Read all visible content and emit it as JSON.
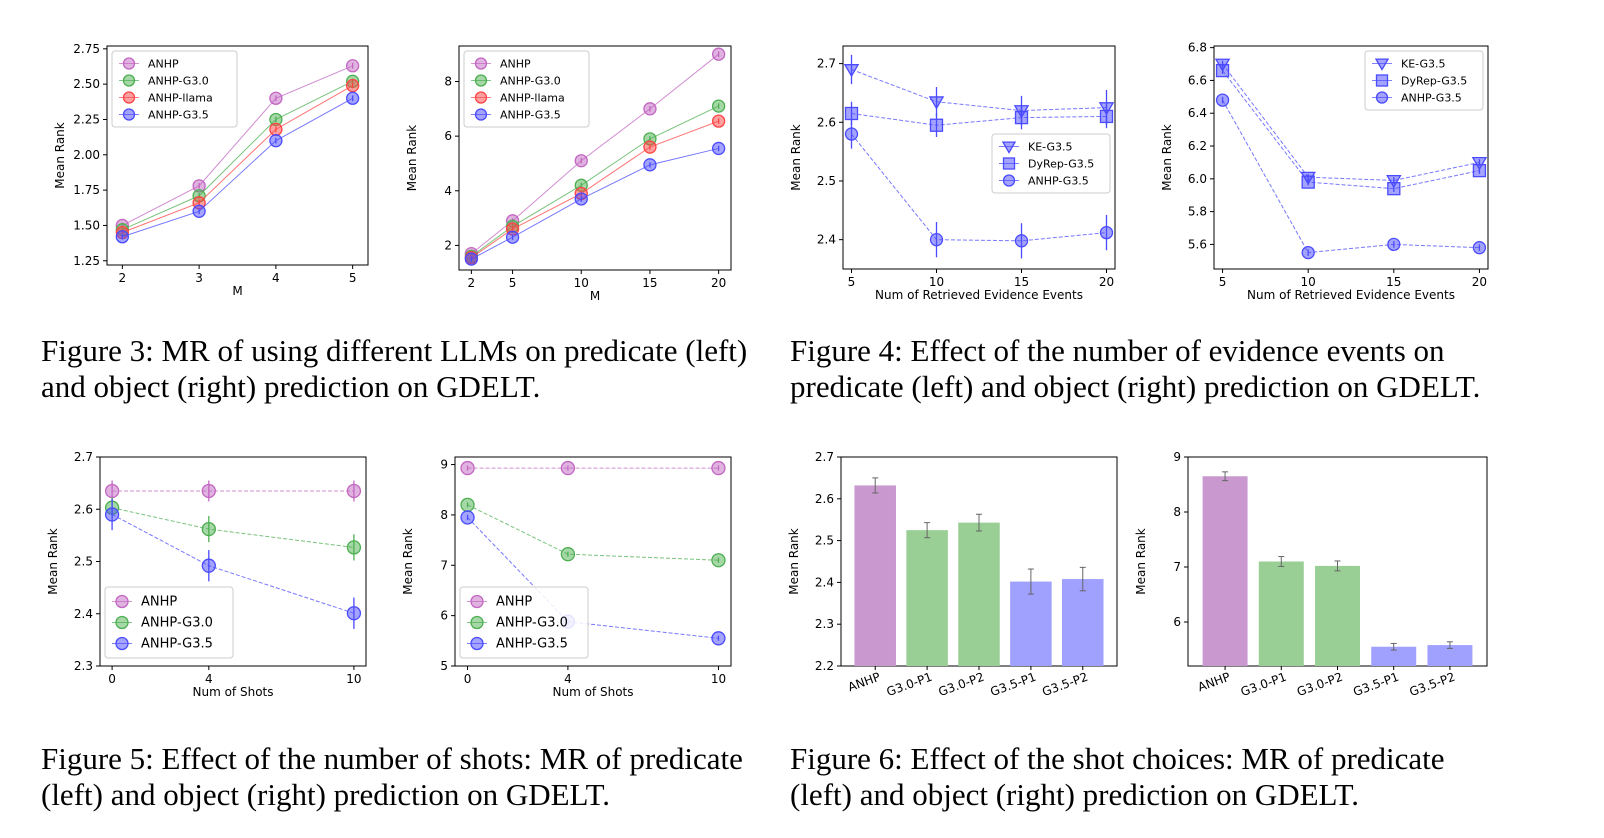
{
  "captions": {
    "fig3": "Figure 3: MR of using different LLMs on predicate (left) and object (right) prediction on GDELT.",
    "fig4": "Figure 4: Effect of the number of evidence events on predicate (left) and object (right) prediction on GDELT.",
    "fig5": "Figure 5: Effect of the number of shots: MR of predicate (left) and object (right) prediction on GDELT.",
    "fig6": "Figure 6: Effect of the shot choices: MR of predicate (left) and object (right) prediction on GDELT."
  },
  "chart_data": [
    {
      "id": "fig3-left",
      "type": "line",
      "title": "",
      "xlabel": "M",
      "ylabel": "Mean Rank",
      "x": [
        2,
        3,
        4,
        5
      ],
      "xticks": [
        "2",
        "3",
        "4",
        "5"
      ],
      "xlim": [
        1.8,
        5.2
      ],
      "ylim": [
        1.22,
        2.77
      ],
      "yticks": [
        "1.25",
        "1.50",
        "1.75",
        "2.00",
        "2.25",
        "2.50",
        "2.75"
      ],
      "grid": false,
      "legend": "upper-left",
      "series": [
        {
          "name": "ANHP",
          "color": "#c266c2",
          "marker": "circle",
          "values": [
            1.5,
            1.78,
            2.4,
            2.63
          ],
          "err": [
            0.02,
            0.02,
            0.02,
            0.02
          ]
        },
        {
          "name": "ANHP-G3.0",
          "color": "#4caf50",
          "marker": "circle",
          "values": [
            1.47,
            1.71,
            2.25,
            2.52
          ],
          "err": [
            0.02,
            0.02,
            0.02,
            0.02
          ]
        },
        {
          "name": "ANHP-llama",
          "color": "#ff4444",
          "marker": "circle",
          "values": [
            1.45,
            1.66,
            2.18,
            2.49
          ],
          "err": [
            0.02,
            0.02,
            0.02,
            0.02
          ]
        },
        {
          "name": "ANHP-G3.5",
          "color": "#4a4aff",
          "marker": "circle",
          "values": [
            1.42,
            1.6,
            2.1,
            2.4
          ],
          "err": [
            0.02,
            0.02,
            0.02,
            0.02
          ]
        }
      ]
    },
    {
      "id": "fig3-right",
      "type": "line",
      "title": "",
      "xlabel": "M",
      "ylabel": "Mean Rank",
      "x": [
        2,
        5,
        10,
        15,
        20
      ],
      "xticks": [
        "2",
        "5",
        "10",
        "15",
        "20"
      ],
      "xlim": [
        1.1,
        20.9
      ],
      "ylim": [
        1.1,
        9.3
      ],
      "yticks": [
        "2",
        "4",
        "6",
        "8"
      ],
      "grid": false,
      "legend": "upper-left",
      "series": [
        {
          "name": "ANHP",
          "color": "#c266c2",
          "marker": "circle",
          "values": [
            1.7,
            2.9,
            5.1,
            7.0,
            9.0
          ],
          "err": [
            0.1,
            0.1,
            0.1,
            0.1,
            0.1
          ]
        },
        {
          "name": "ANHP-G3.0",
          "color": "#4caf50",
          "marker": "circle",
          "values": [
            1.6,
            2.7,
            4.2,
            5.9,
            7.1
          ],
          "err": [
            0.1,
            0.1,
            0.1,
            0.1,
            0.1
          ]
        },
        {
          "name": "ANHP-llama",
          "color": "#ff4444",
          "marker": "circle",
          "values": [
            1.55,
            2.6,
            3.9,
            5.6,
            6.55
          ],
          "err": [
            0.1,
            0.1,
            0.1,
            0.1,
            0.1
          ]
        },
        {
          "name": "ANHP-G3.5",
          "color": "#4a4aff",
          "marker": "circle",
          "values": [
            1.5,
            2.3,
            3.7,
            4.95,
            5.55
          ],
          "err": [
            0.1,
            0.1,
            0.1,
            0.1,
            0.1
          ]
        }
      ]
    },
    {
      "id": "fig4-left",
      "type": "line",
      "title": "",
      "xlabel": "Num of Retrieved Evidence Events",
      "ylabel": "Mean Rank",
      "x": [
        5,
        10,
        15,
        20
      ],
      "xticks": [
        "5",
        "10",
        "15",
        "20"
      ],
      "xlim": [
        4.5,
        20.5
      ],
      "ylim": [
        2.35,
        2.73
      ],
      "yticks": [
        "2.4",
        "2.5",
        "2.6",
        "2.7"
      ],
      "grid": false,
      "legend": "center-right",
      "series": [
        {
          "name": "KE-G3.5",
          "color": "#4a4aff",
          "marker": "triangle-down",
          "values": [
            2.69,
            2.635,
            2.62,
            2.625
          ],
          "err": [
            0.025,
            0.025,
            0.025,
            0.03
          ]
        },
        {
          "name": "DyRep-G3.5",
          "color": "#4a4aff",
          "marker": "square",
          "values": [
            2.615,
            2.595,
            2.608,
            2.61
          ],
          "err": [
            0.02,
            0.02,
            0.02,
            0.02
          ]
        },
        {
          "name": "ANHP-G3.5",
          "color": "#4a4aff",
          "marker": "circle",
          "values": [
            2.58,
            2.4,
            2.398,
            2.412
          ],
          "err": [
            0.025,
            0.03,
            0.03,
            0.03
          ]
        }
      ]
    },
    {
      "id": "fig4-right",
      "type": "line",
      "title": "",
      "xlabel": "Num of Retrieved Evidence Events",
      "ylabel": "Mean Rank",
      "x": [
        5,
        10,
        15,
        20
      ],
      "xticks": [
        "5",
        "10",
        "15",
        "20"
      ],
      "xlim": [
        4.5,
        20.5
      ],
      "ylim": [
        5.45,
        6.81
      ],
      "yticks": [
        "5.6",
        "5.8",
        "6.0",
        "6.2",
        "6.4",
        "6.6",
        "6.8"
      ],
      "grid": false,
      "legend": "upper-right",
      "series": [
        {
          "name": "KE-G3.5",
          "color": "#4a4aff",
          "marker": "triangle-down",
          "values": [
            6.7,
            6.01,
            5.99,
            6.1
          ],
          "err": [
            0.02,
            0.02,
            0.02,
            0.02
          ]
        },
        {
          "name": "DyRep-G3.5",
          "color": "#4a4aff",
          "marker": "square",
          "values": [
            6.66,
            5.98,
            5.94,
            6.05
          ],
          "err": [
            0.02,
            0.02,
            0.02,
            0.02
          ]
        },
        {
          "name": "ANHP-G3.5",
          "color": "#4a4aff",
          "marker": "circle",
          "values": [
            6.48,
            5.55,
            5.6,
            5.58
          ],
          "err": [
            0.02,
            0.02,
            0.02,
            0.02
          ]
        }
      ]
    },
    {
      "id": "fig5-left",
      "type": "line",
      "title": "",
      "xlabel": "Num of Shots",
      "ylabel": "Mean Rank",
      "x": [
        0,
        4,
        10
      ],
      "xticks": [
        "0",
        "4",
        "10"
      ],
      "xlim": [
        -0.5,
        10.5
      ],
      "ylim": [
        2.3,
        2.7
      ],
      "yticks": [
        "2.3",
        "2.4",
        "2.5",
        "2.6",
        "2.7"
      ],
      "grid": false,
      "legend": "lower-left",
      "series": [
        {
          "name": "ANHP",
          "color": "#c266c2",
          "marker": "circle",
          "values": [
            2.635,
            2.635,
            2.635
          ],
          "err": [
            0.02,
            0.02,
            0.02
          ]
        },
        {
          "name": "ANHP-G3.0",
          "color": "#4caf50",
          "marker": "circle",
          "values": [
            2.603,
            2.562,
            2.527
          ],
          "err": [
            0.02,
            0.025,
            0.025
          ]
        },
        {
          "name": "ANHP-G3.5",
          "color": "#4a4aff",
          "marker": "circle",
          "values": [
            2.59,
            2.492,
            2.401
          ],
          "err": [
            0.03,
            0.03,
            0.03
          ]
        }
      ]
    },
    {
      "id": "fig5-right",
      "type": "line",
      "title": "",
      "xlabel": "Num of Shots",
      "ylabel": "Mean Rank",
      "x": [
        0,
        4,
        10
      ],
      "xticks": [
        "0",
        "4",
        "10"
      ],
      "xlim": [
        -0.5,
        10.5
      ],
      "ylim": [
        5.0,
        9.15
      ],
      "yticks": [
        "5",
        "6",
        "7",
        "8",
        "9"
      ],
      "grid": false,
      "legend": "lower-left",
      "series": [
        {
          "name": "ANHP",
          "color": "#c266c2",
          "marker": "circle",
          "values": [
            8.93,
            8.93,
            8.93
          ],
          "err": [
            0.05,
            0.05,
            0.05
          ]
        },
        {
          "name": "ANHP-G3.0",
          "color": "#4caf50",
          "marker": "circle",
          "values": [
            8.2,
            7.22,
            7.1
          ],
          "err": [
            0.05,
            0.05,
            0.05
          ]
        },
        {
          "name": "ANHP-G3.5",
          "color": "#4a4aff",
          "marker": "circle",
          "values": [
            7.95,
            5.88,
            5.55
          ],
          "err": [
            0.05,
            0.05,
            0.05
          ]
        }
      ]
    },
    {
      "id": "fig6-left",
      "type": "bar",
      "title": "",
      "xlabel": "",
      "ylabel": "Mean Rank",
      "categories": [
        "ANHP",
        "G3.0-P1",
        "G3.0-P2",
        "G3.5-P1",
        "G3.5-P2"
      ],
      "values": [
        2.632,
        2.525,
        2.543,
        2.402,
        2.408
      ],
      "err": [
        0.018,
        0.018,
        0.02,
        0.03,
        0.028
      ],
      "colors": [
        "#c898cf",
        "#99cf95",
        "#99cf95",
        "#a0a0ff",
        "#a0a0ff"
      ],
      "ylim": [
        2.2,
        2.7
      ],
      "yticks": [
        "2.2",
        "2.3",
        "2.4",
        "2.5",
        "2.6",
        "2.7"
      ],
      "grid": false
    },
    {
      "id": "fig6-right",
      "type": "bar",
      "title": "",
      "xlabel": "",
      "ylabel": "Mean Rank",
      "categories": [
        "ANHP",
        "G3.0-P1",
        "G3.0-P2",
        "G3.5-P1",
        "G3.5-P2"
      ],
      "values": [
        8.65,
        7.1,
        7.02,
        5.55,
        5.58
      ],
      "err": [
        0.08,
        0.09,
        0.09,
        0.06,
        0.06
      ],
      "colors": [
        "#c898cf",
        "#99cf95",
        "#99cf95",
        "#a0a0ff",
        "#a0a0ff"
      ],
      "ylim": [
        5.2,
        9.0
      ],
      "yticks": [
        "6",
        "7",
        "8",
        "9"
      ],
      "grid": false
    }
  ]
}
